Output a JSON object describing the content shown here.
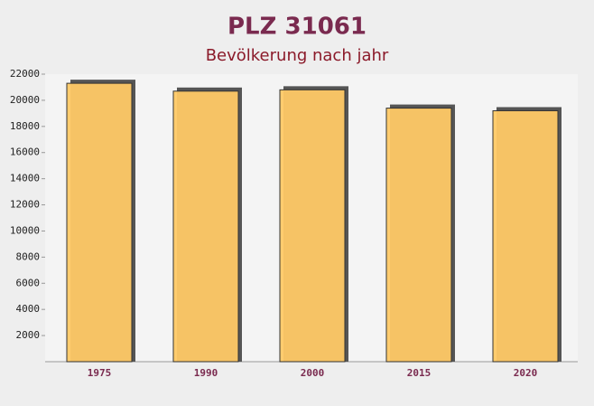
{
  "chart_data": {
    "type": "bar",
    "title": "PLZ 31061",
    "subtitle": "Bevölkerung nach jahr",
    "categories": [
      "1975",
      "1990",
      "2000",
      "2015",
      "2020"
    ],
    "values": [
      21300,
      20700,
      20800,
      19400,
      19200
    ],
    "color": "#ffc966",
    "ylim": [
      0,
      22000
    ],
    "yticks": [
      2000,
      4000,
      6000,
      8000,
      10000,
      12000,
      14000,
      16000,
      18000,
      20000,
      22000
    ]
  }
}
